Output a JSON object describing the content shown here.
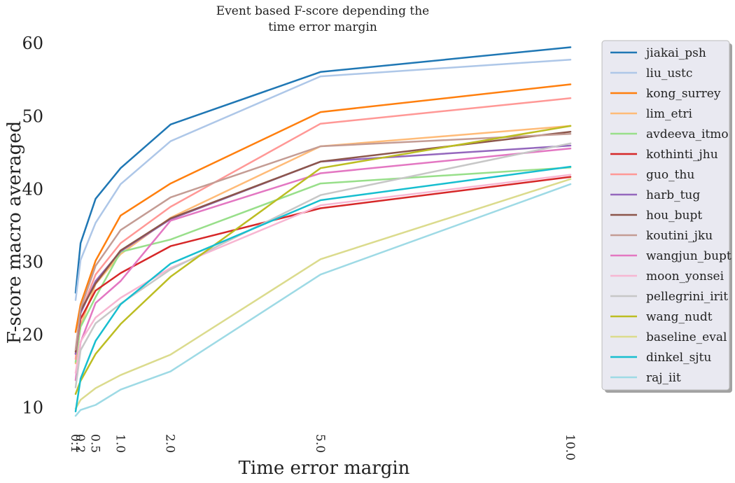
{
  "chart_data": {
    "type": "line",
    "title": "Event based F-score depending the time error margin",
    "title_lines": [
      "Event based F-score depending the",
      "time error margin"
    ],
    "xlabel": "Time error margin",
    "ylabel": "F-score macro averaged",
    "x": [
      0.1,
      0.2,
      0.5,
      1.0,
      2.0,
      5.0,
      10.0
    ],
    "x_tick_labels": [
      "0.1",
      "0.2",
      "0.5",
      "1.0",
      "2.0",
      "5.0",
      "10.0"
    ],
    "y_ticks": [
      10,
      20,
      30,
      40,
      50,
      60
    ],
    "y_tick_labels": [
      "10",
      "20",
      "30",
      "40",
      "50",
      "60"
    ],
    "ylim": [
      6.5,
      63
    ],
    "xlim": [
      0,
      10.5
    ],
    "grid": false,
    "legend_position": "outside-right",
    "series": [
      {
        "name": "jiakai_psh",
        "color": "#1f77b4",
        "values": [
          25.7,
          32.5,
          38.6,
          42.8,
          48.8,
          56.0,
          59.4
        ]
      },
      {
        "name": "liu_ustc",
        "color": "#aec7e8",
        "values": [
          24.7,
          30.2,
          35.3,
          40.6,
          46.5,
          55.4,
          57.7
        ]
      },
      {
        "name": "kong_surrey",
        "color": "#ff7f0e",
        "values": [
          20.3,
          24.1,
          30.1,
          36.3,
          40.7,
          50.5,
          54.3
        ]
      },
      {
        "name": "lim_etri",
        "color": "#ffbb78",
        "values": [
          16.0,
          21.2,
          26.9,
          31.0,
          36.0,
          45.8,
          48.6
        ]
      },
      {
        "name": "avdeeva_itmo",
        "color": "#98df8a",
        "values": [
          16.2,
          21.0,
          25.1,
          31.3,
          33.0,
          40.7,
          42.9
        ]
      },
      {
        "name": "kothinti_jhu",
        "color": "#d62728",
        "values": [
          17.3,
          22.1,
          26.0,
          28.4,
          32.1,
          37.3,
          41.6
        ]
      },
      {
        "name": "guo_thu",
        "color": "#ff9896",
        "values": [
          16.6,
          22.9,
          28.2,
          32.5,
          37.5,
          48.9,
          52.4
        ]
      },
      {
        "name": "harb_tug",
        "color": "#9467bd",
        "values": [
          17.3,
          22.9,
          27.3,
          31.4,
          35.8,
          43.7,
          45.9
        ]
      },
      {
        "name": "hou_bupt",
        "color": "#8c564b",
        "values": [
          17.6,
          23.2,
          27.0,
          31.5,
          35.9,
          43.7,
          47.8
        ]
      },
      {
        "name": "koutini_jku",
        "color": "#c49c94",
        "values": [
          17.9,
          23.5,
          29.4,
          34.3,
          38.8,
          45.8,
          47.5
        ]
      },
      {
        "name": "wangjun_bupt",
        "color": "#e377c2",
        "values": [
          13.7,
          18.9,
          24.3,
          27.3,
          35.6,
          42.1,
          45.5
        ]
      },
      {
        "name": "moon_yonsei",
        "color": "#f7b6d2",
        "values": [
          14.7,
          19.0,
          22.3,
          25.0,
          29.1,
          37.7,
          41.9
        ]
      },
      {
        "name": "pellegrini_irit",
        "color": "#c7c7c7",
        "values": [
          12.7,
          17.8,
          21.5,
          24.2,
          28.9,
          39.1,
          46.2
        ]
      },
      {
        "name": "wang_nudt",
        "color": "#bcbd22",
        "values": [
          11.8,
          13.6,
          17.3,
          21.4,
          27.9,
          42.8,
          48.6
        ]
      },
      {
        "name": "baseline_eval",
        "color": "#dbdb8d",
        "values": [
          9.8,
          11.0,
          12.6,
          14.4,
          17.2,
          30.3,
          41.3
        ]
      },
      {
        "name": "dinkel_sjtu",
        "color": "#17becf",
        "values": [
          9.4,
          13.9,
          19.1,
          24.1,
          29.7,
          38.4,
          43.0
        ]
      },
      {
        "name": "raj_iit",
        "color": "#9edae5",
        "values": [
          8.8,
          9.6,
          10.3,
          12.4,
          14.9,
          28.2,
          40.6
        ]
      }
    ]
  }
}
